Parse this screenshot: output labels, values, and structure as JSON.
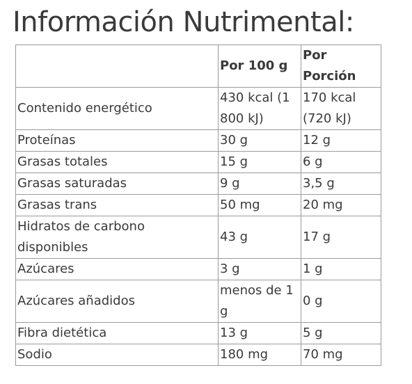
{
  "title": "Información Nutrimental:",
  "table": {
    "headers": [
      "",
      "Por 100 g",
      "Por Porción"
    ],
    "rows": [
      {
        "name": "Contenido energético",
        "per100": "430 kcal (1 800 kJ)",
        "portion": "170 kcal (720 kJ)"
      },
      {
        "name": "Proteínas",
        "per100": "30 g",
        "portion": "12 g"
      },
      {
        "name": "Grasas totales",
        "per100": "15 g",
        "portion": "6 g"
      },
      {
        "name": "Grasas saturadas",
        "per100": "9 g",
        "portion": "3,5 g"
      },
      {
        "name": "Grasas trans",
        "per100": "50 mg",
        "portion": "20 mg"
      },
      {
        "name": "Hidratos de carbono disponibles",
        "per100": "43 g",
        "portion": "17 g"
      },
      {
        "name": "Azúcares",
        "per100": "3 g",
        "portion": "1 g"
      },
      {
        "name": "Azúcares añadidos",
        "per100": "menos de 1 g",
        "portion": "0 g"
      },
      {
        "name": "Fibra dietética",
        "per100": "13 g",
        "portion": "5 g"
      },
      {
        "name": "Sodio",
        "per100": "180 mg",
        "portion": "70 mg"
      }
    ]
  }
}
